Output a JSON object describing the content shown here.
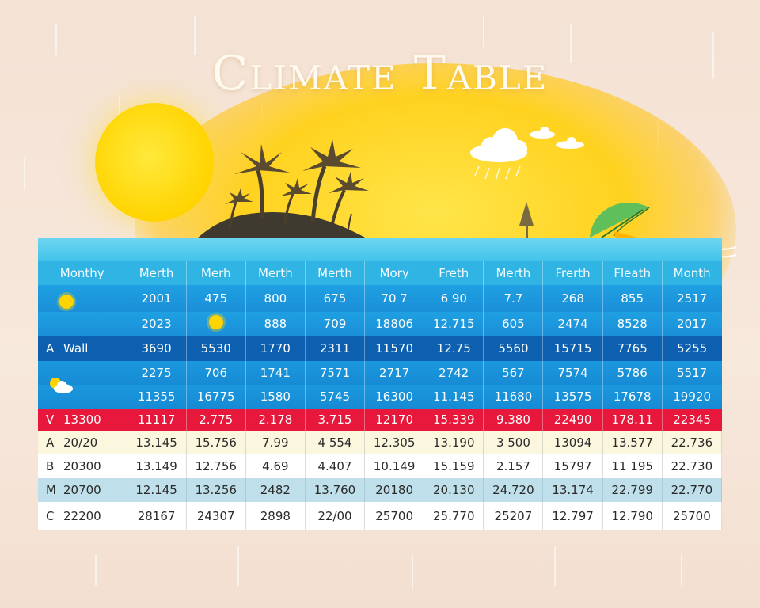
{
  "title": "Climate Table",
  "header": [
    "Monthy",
    "Merth",
    "Merh",
    "Merth",
    "Merth",
    "Mory",
    "Freth",
    "Merth",
    "Frerth",
    "Fleath",
    "Month"
  ],
  "rows": [
    {
      "label": "",
      "values": [
        "2001",
        "475",
        "800",
        "675",
        "70 7",
        "6 90",
        "7.7",
        "268",
        "855",
        "2517"
      ]
    },
    {
      "label": "",
      "values": [
        "2023",
        "888",
        "709",
        "18806",
        "12.715",
        "605",
        "2474",
        "8528",
        "2017"
      ]
    },
    {
      "key": "A",
      "label": "Wall",
      "values": [
        "3690",
        "5530",
        "1770",
        "2311",
        "11570",
        "12.75",
        "5560",
        "15715",
        "7765",
        "5255"
      ]
    },
    {
      "label": "",
      "values": [
        "2275",
        "706",
        "1741",
        "7571",
        "2717",
        "2742",
        "567",
        "7574",
        "5786",
        "5517"
      ]
    },
    {
      "label": "",
      "values": [
        "11355",
        "16775",
        "1580",
        "5745",
        "16300",
        "11.145",
        "11680",
        "13575",
        "17678",
        "19920"
      ]
    },
    {
      "key": "V",
      "label": "13300",
      "values": [
        "11117",
        "2.775",
        "2.178",
        "3.715",
        "12170",
        "15.339",
        "9.380",
        "22490",
        "178.11",
        "22345"
      ]
    },
    {
      "key": "A",
      "label": "20/20",
      "values": [
        "13.145",
        "15.756",
        "7.99",
        "4 554",
        "12.305",
        "13.190",
        "3 500",
        "13094",
        "13.577",
        "22.736"
      ]
    },
    {
      "key": "B",
      "label": "20300",
      "values": [
        "13.149",
        "12.756",
        "4.69",
        "4.407",
        "10.149",
        "15.159",
        "2.157",
        "15797",
        "11 195",
        "22.730"
      ]
    },
    {
      "key": "M",
      "label": "20700",
      "values": [
        "12.145",
        "13.256",
        "2482",
        "13.760",
        "20180",
        "20.130",
        "24.720",
        "13.174",
        "22.799",
        "22.770"
      ]
    },
    {
      "key": "C",
      "label": "22200",
      "values": [
        "28167",
        "24307",
        "2898",
        "22/00",
        "25700",
        "25.770",
        "25207",
        "12.797",
        "12.790",
        "25700"
      ]
    }
  ],
  "icons": {
    "row1": "sun-icon",
    "row2": "sun-icon",
    "row4": "partly-cloudy-icon"
  },
  "colors": {
    "sea": "#2fb4e4",
    "dark_row": "#0d5fb0",
    "red_row": "#e8183c",
    "sun": "#ffd400"
  }
}
